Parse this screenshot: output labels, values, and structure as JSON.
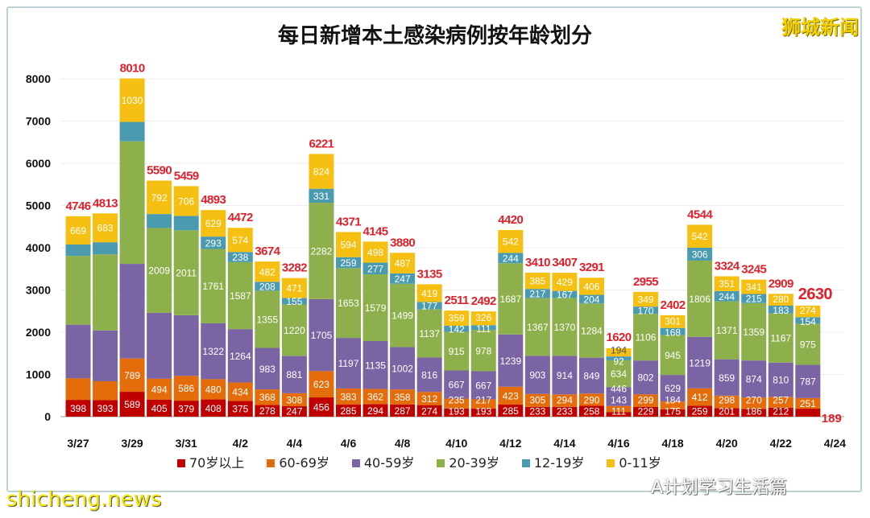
{
  "brand": "狮城新闻",
  "watermarks": {
    "site": "shicheng.news",
    "account": "A计划学习生活篇"
  },
  "colors": {
    "red": "#c00000",
    "orange": "#e46c0a",
    "purple": "#7b64a3",
    "green": "#8db04c",
    "teal": "#4a9bb0",
    "yellow": "#f5c011",
    "total_label": "#e0202a"
  },
  "chart_data": {
    "type": "bar",
    "stacked": true,
    "title": "每日新增本土感染病例按年龄划分",
    "xlabel": "",
    "ylabel": "",
    "ylim": [
      0,
      8000
    ],
    "yticks": [
      0,
      1000,
      2000,
      3000,
      4000,
      5000,
      6000,
      7000,
      8000
    ],
    "grid": true,
    "legend_position": "bottom",
    "categories": [
      "3/27",
      "3/28",
      "3/29",
      "3/30",
      "3/31",
      "4/1",
      "4/2",
      "4/3",
      "4/4",
      "4/5",
      "4/6",
      "4/7",
      "4/8",
      "4/9",
      "4/10",
      "4/11",
      "4/12",
      "4/13",
      "4/14",
      "4/15",
      "4/16",
      "4/17",
      "4/18",
      "4/19",
      "4/20",
      "4/21",
      "4/22",
      "4/23"
    ],
    "xtick_labels": [
      "3/27",
      "3/29",
      "3/31",
      "4/2",
      "4/4",
      "4/6",
      "4/8",
      "4/10",
      "4/12",
      "4/14",
      "4/16",
      "4/18",
      "4/20",
      "4/22",
      "4/24"
    ],
    "totals": [
      4746,
      4813,
      8010,
      5590,
      5459,
      4893,
      4472,
      3674,
      3282,
      6221,
      4371,
      4145,
      3880,
      3135,
      2511,
      2492,
      4420,
      3410,
      3407,
      3291,
      1620,
      2955,
      2402,
      4544,
      3324,
      3245,
      2909,
      2630
    ],
    "series": [
      {
        "name": "70岁以上",
        "color": "#c00000",
        "values": [
          398,
          393,
          589,
          405,
          379,
          408,
          375,
          278,
          247,
          456,
          285,
          294,
          287,
          274,
          193,
          193,
          285,
          233,
          233,
          258,
          111,
          229,
          175,
          259,
          201,
          186,
          212,
          189
        ],
        "unlabeled": []
      },
      {
        "name": "60-69岁",
        "color": "#e46c0a",
        "values": [
          510,
          445,
          789,
          494,
          586,
          480,
          434,
          368,
          308,
          623,
          383,
          362,
          358,
          312,
          235,
          217,
          423,
          305,
          294,
          290,
          143,
          299,
          184,
          412,
          298,
          270,
          257,
          251
        ],
        "unlabeled": [
          0,
          1
        ]
      },
      {
        "name": "40-59岁",
        "color": "#7b64a3",
        "values": [
          1270,
          1205,
          2240,
          1560,
          1437,
          1322,
          1264,
          983,
          881,
          1705,
          1197,
          1135,
          1002,
          816,
          667,
          667,
          1239,
          903,
          914,
          849,
          446,
          802,
          629,
          1219,
          859,
          874,
          810,
          787
        ],
        "unlabeled": [
          0,
          1,
          2,
          3,
          4
        ]
      },
      {
        "name": "20-39岁",
        "color": "#8db04c",
        "values": [
          1629,
          1802,
          2902,
          2009,
          2011,
          1761,
          1587,
          1355,
          1220,
          2282,
          1653,
          1579,
          1499,
          1137,
          915,
          978,
          1687,
          1367,
          1370,
          1284,
          634,
          1106,
          945,
          1806,
          1371,
          1359,
          1167,
          975
        ],
        "unlabeled": [
          0,
          1,
          2
        ]
      },
      {
        "name": "12-19岁",
        "color": "#4a9bb0",
        "values": [
          270,
          285,
          460,
          330,
          340,
          293,
          238,
          208,
          155,
          331,
          259,
          277,
          247,
          177,
          142,
          111,
          244,
          217,
          167,
          204,
          92,
          170,
          168,
          306,
          244,
          215,
          183,
          154
        ],
        "unlabeled": [
          0,
          1,
          2,
          3,
          4
        ]
      },
      {
        "name": "0-11岁",
        "color": "#f5c011",
        "values": [
          669,
          683,
          1030,
          792,
          706,
          629,
          574,
          482,
          471,
          824,
          594,
          498,
          487,
          419,
          359,
          326,
          542,
          385,
          429,
          406,
          194,
          349,
          301,
          542,
          351,
          341,
          280,
          274
        ],
        "unlabeled": []
      }
    ]
  }
}
